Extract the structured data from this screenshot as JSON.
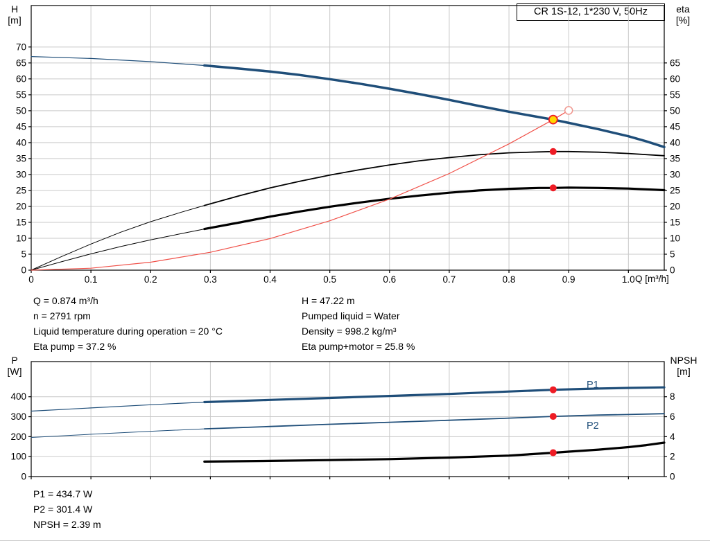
{
  "axis_corner_labels": {
    "top_left": [
      "H",
      "[m]"
    ],
    "top_right": [
      "eta",
      "[%]"
    ],
    "bottom_left": [
      "P",
      "[W]"
    ],
    "bottom_right": [
      "NPSH",
      "[m]"
    ]
  },
  "operating_point_info": {
    "left": [
      "Q = 0.874 m³/h",
      "n = 2791 rpm",
      "Liquid temperature during operation = 20 °C",
      "Eta pump = 37.2 %"
    ],
    "right": [
      "H = 47.22 m",
      "Pumped liquid = Water",
      "Density = 998.2 kg/m³",
      "Eta pump+motor = 25.8 %"
    ]
  },
  "power_info": [
    "P1 = 434.7 W",
    "P2 = 301.4 W",
    "NPSH = 2.39 m"
  ],
  "chart_data": [
    {
      "type": "line",
      "title": "CR 1S-12, 1*230 V, 50Hz",
      "x": {
        "label": "Q [m³/h]",
        "min": 0,
        "max": 1.06,
        "ticks": [
          [
            0,
            "0"
          ],
          [
            0.1,
            "0.1"
          ],
          [
            0.2,
            "0.2"
          ],
          [
            0.3,
            "0.3"
          ],
          [
            0.4,
            "0.4"
          ],
          [
            0.5,
            "0.5"
          ],
          [
            0.6,
            "0.6"
          ],
          [
            0.7,
            "0.7"
          ],
          [
            0.8,
            "0.8"
          ],
          [
            0.9,
            "0.9"
          ],
          [
            1,
            "1.0"
          ]
        ]
      },
      "y_left": {
        "label": "H [m]",
        "min": 0,
        "max": 83,
        "ticks": [
          [
            0,
            "0"
          ],
          [
            5,
            "5"
          ],
          [
            10,
            "10"
          ],
          [
            15,
            "15"
          ],
          [
            20,
            "20"
          ],
          [
            25,
            "25"
          ],
          [
            30,
            "30"
          ],
          [
            35,
            "35"
          ],
          [
            40,
            "40"
          ],
          [
            45,
            "45"
          ],
          [
            50,
            "50"
          ],
          [
            55,
            "55"
          ],
          [
            60,
            "60"
          ],
          [
            65,
            "65"
          ],
          [
            70,
            "70"
          ]
        ]
      },
      "y_right": {
        "label": "eta [%]",
        "min": 0,
        "max": 83,
        "ticks": [
          [
            0,
            "0"
          ],
          [
            5,
            "5"
          ],
          [
            10,
            "10"
          ],
          [
            15,
            "15"
          ],
          [
            20,
            "20"
          ],
          [
            25,
            "25"
          ],
          [
            30,
            "30"
          ],
          [
            35,
            "35"
          ],
          [
            40,
            "40"
          ],
          [
            45,
            "45"
          ],
          [
            50,
            "50"
          ],
          [
            55,
            "55"
          ],
          [
            60,
            "60"
          ],
          [
            65,
            "65"
          ]
        ]
      },
      "series": [
        {
          "name": "head-curve-outside-range",
          "axis": "left",
          "color": "#1f4e79",
          "width": 1.2,
          "points": [
            [
              0,
              67
            ],
            [
              0.1,
              66.4
            ],
            [
              0.2,
              65.4
            ],
            [
              0.29,
              64.2
            ]
          ]
        },
        {
          "name": "head-curve",
          "axis": "left",
          "color": "#1f4e79",
          "width": 3.5,
          "points": [
            [
              0.29,
              64.2
            ],
            [
              0.35,
              63.2
            ],
            [
              0.4,
              62.3
            ],
            [
              0.45,
              61.2
            ],
            [
              0.5,
              59.9
            ],
            [
              0.55,
              58.5
            ],
            [
              0.6,
              56.9
            ],
            [
              0.65,
              55.2
            ],
            [
              0.7,
              53.4
            ],
            [
              0.75,
              51.5
            ],
            [
              0.8,
              49.7
            ],
            [
              0.874,
              47.22
            ],
            [
              0.9,
              46.2
            ],
            [
              0.95,
              44.2
            ],
            [
              1.0,
              42
            ],
            [
              1.03,
              40.4
            ],
            [
              1.06,
              38.6
            ]
          ]
        },
        {
          "name": "eta-pump-curve-outside-range",
          "axis": "right",
          "color": "#000000",
          "width": 1,
          "points": [
            [
              0,
              0
            ],
            [
              0.05,
              4.2
            ],
            [
              0.1,
              8.2
            ],
            [
              0.15,
              11.9
            ],
            [
              0.2,
              15.2
            ],
            [
              0.25,
              18.1
            ],
            [
              0.29,
              20.3
            ]
          ]
        },
        {
          "name": "eta-pump-curve",
          "axis": "right",
          "color": "#000000",
          "width": 1.8,
          "points": [
            [
              0.29,
              20.3
            ],
            [
              0.35,
              23.4
            ],
            [
              0.4,
              25.8
            ],
            [
              0.45,
              27.9
            ],
            [
              0.5,
              29.8
            ],
            [
              0.55,
              31.5
            ],
            [
              0.6,
              33
            ],
            [
              0.65,
              34.3
            ],
            [
              0.7,
              35.3
            ],
            [
              0.75,
              36.2
            ],
            [
              0.8,
              36.8
            ],
            [
              0.85,
              37.1
            ],
            [
              0.874,
              37.2
            ],
            [
              0.9,
              37.2
            ],
            [
              0.95,
              37
            ],
            [
              1.0,
              36.6
            ],
            [
              1.06,
              35.9
            ]
          ]
        },
        {
          "name": "eta-pump-motor-curve-outside-range",
          "axis": "right",
          "color": "#000000",
          "width": 1,
          "points": [
            [
              0,
              0
            ],
            [
              0.05,
              2.6
            ],
            [
              0.1,
              5.1
            ],
            [
              0.15,
              7.4
            ],
            [
              0.2,
              9.5
            ],
            [
              0.25,
              11.4
            ],
            [
              0.29,
              12.9
            ]
          ]
        },
        {
          "name": "eta-pump-motor-curve",
          "axis": "right",
          "color": "#000000",
          "width": 3.2,
          "points": [
            [
              0.29,
              12.9
            ],
            [
              0.35,
              15
            ],
            [
              0.4,
              16.8
            ],
            [
              0.45,
              18.4
            ],
            [
              0.5,
              19.9
            ],
            [
              0.55,
              21.2
            ],
            [
              0.6,
              22.4
            ],
            [
              0.65,
              23.4
            ],
            [
              0.7,
              24.3
            ],
            [
              0.75,
              25
            ],
            [
              0.8,
              25.5
            ],
            [
              0.85,
              25.8
            ],
            [
              0.874,
              25.8
            ],
            [
              0.9,
              25.9
            ],
            [
              0.95,
              25.8
            ],
            [
              1.0,
              25.6
            ],
            [
              1.06,
              25.1
            ]
          ]
        },
        {
          "name": "system-curve",
          "axis": "left",
          "color": "#f05048",
          "width": 1.2,
          "points": [
            [
              0,
              0
            ],
            [
              0.1,
              0.6
            ],
            [
              0.2,
              2.5
            ],
            [
              0.3,
              5.6
            ],
            [
              0.4,
              9.9
            ],
            [
              0.5,
              15.5
            ],
            [
              0.6,
              22.3
            ],
            [
              0.7,
              30.3
            ],
            [
              0.8,
              39.6
            ],
            [
              0.874,
              47.22
            ],
            [
              0.9,
              50.1
            ]
          ]
        }
      ],
      "markers": [
        {
          "name": "requested-duty-point",
          "x": 0.9,
          "y": 50.1,
          "axis": "left",
          "r": 5.5,
          "fill": "#ffffff",
          "stroke": "#f0968e",
          "stroke_width": 1.5
        },
        {
          "name": "duty-point",
          "x": 0.874,
          "y": 47.22,
          "axis": "left",
          "r": 6,
          "fill": "#ffd800",
          "stroke": "#ee1c25",
          "stroke_width": 1.8
        },
        {
          "name": "eta-pump-point",
          "x": 0.874,
          "y": 37.2,
          "axis": "right",
          "r": 5,
          "fill": "#ee1c25"
        },
        {
          "name": "eta-pump-motor-point",
          "x": 0.874,
          "y": 25.8,
          "axis": "right",
          "r": 5,
          "fill": "#ee1c25"
        }
      ],
      "labels": []
    },
    {
      "type": "line",
      "title": "",
      "x": {
        "label": "",
        "min": 0,
        "max": 1.06,
        "ticks": [
          [
            0,
            "0"
          ],
          [
            0.1,
            "0.1"
          ],
          [
            0.2,
            "0.2"
          ],
          [
            0.3,
            "0.3"
          ],
          [
            0.4,
            "0.4"
          ],
          [
            0.5,
            "0.5"
          ],
          [
            0.6,
            "0.6"
          ],
          [
            0.7,
            "0.7"
          ],
          [
            0.8,
            "0.8"
          ],
          [
            0.9,
            "0.9"
          ],
          [
            1,
            "1.0"
          ]
        ]
      },
      "y_left": {
        "label": "P [W]",
        "min": 0,
        "max": 576,
        "ticks": [
          [
            0,
            "0"
          ],
          [
            100,
            "100"
          ],
          [
            200,
            "200"
          ],
          [
            300,
            "300"
          ],
          [
            400,
            "400"
          ]
        ]
      },
      "y_right": {
        "label": "NPSH [m]",
        "min": 0,
        "max": 11.52,
        "ticks": [
          [
            0,
            "0"
          ],
          [
            2,
            "2"
          ],
          [
            4,
            "4"
          ],
          [
            6,
            "6"
          ],
          [
            8,
            "8"
          ]
        ]
      },
      "series": [
        {
          "name": "p1-curve-outside-range",
          "axis": "left",
          "color": "#1f4e79",
          "width": 1.2,
          "points": [
            [
              0,
              328
            ],
            [
              0.1,
              344
            ],
            [
              0.2,
              360
            ],
            [
              0.29,
              373
            ]
          ]
        },
        {
          "name": "p1-curve",
          "axis": "left",
          "color": "#1f4e79",
          "width": 3.2,
          "points": [
            [
              0.29,
              373
            ],
            [
              0.4,
              384
            ],
            [
              0.5,
              394
            ],
            [
              0.6,
              404
            ],
            [
              0.7,
              414
            ],
            [
              0.8,
              426
            ],
            [
              0.874,
              434.7
            ],
            [
              0.95,
              441
            ],
            [
              1.0,
              444
            ],
            [
              1.06,
              447
            ]
          ]
        },
        {
          "name": "p2-curve-outside-range",
          "axis": "left",
          "color": "#1f4e79",
          "width": 1,
          "points": [
            [
              0,
              196
            ],
            [
              0.1,
              212
            ],
            [
              0.2,
              227
            ],
            [
              0.29,
              239
            ]
          ]
        },
        {
          "name": "p2-curve",
          "axis": "left",
          "color": "#1f4e79",
          "width": 1.8,
          "points": [
            [
              0.29,
              239
            ],
            [
              0.4,
              251
            ],
            [
              0.5,
              262
            ],
            [
              0.6,
              272
            ],
            [
              0.7,
              282
            ],
            [
              0.8,
              293
            ],
            [
              0.874,
              301.4
            ],
            [
              0.95,
              308
            ],
            [
              1.0,
              311
            ],
            [
              1.06,
              315
            ]
          ]
        },
        {
          "name": "npsh-curve",
          "axis": "right",
          "color": "#000000",
          "width": 3.2,
          "points": [
            [
              0.29,
              1.5
            ],
            [
              0.4,
              1.57
            ],
            [
              0.5,
              1.65
            ],
            [
              0.6,
              1.75
            ],
            [
              0.7,
              1.9
            ],
            [
              0.8,
              2.1
            ],
            [
              0.874,
              2.39
            ],
            [
              0.9,
              2.5
            ],
            [
              0.95,
              2.7
            ],
            [
              1.0,
              2.95
            ],
            [
              1.03,
              3.15
            ],
            [
              1.06,
              3.4
            ]
          ]
        }
      ],
      "markers": [
        {
          "name": "p1-point",
          "x": 0.874,
          "y": 434.7,
          "axis": "left",
          "r": 5,
          "fill": "#ee1c25"
        },
        {
          "name": "p2-point",
          "x": 0.874,
          "y": 301.4,
          "axis": "left",
          "r": 5,
          "fill": "#ee1c25"
        },
        {
          "name": "npsh-point",
          "x": 0.874,
          "y": 2.39,
          "axis": "right",
          "r": 5,
          "fill": "#ee1c25"
        }
      ],
      "labels": [
        {
          "text": "P1",
          "x": 0.93,
          "y": 445,
          "axis": "left",
          "color": "#1f4e79"
        },
        {
          "text": "P2",
          "x": 0.93,
          "y": 240,
          "axis": "left",
          "color": "#1f4e79"
        }
      ]
    }
  ]
}
